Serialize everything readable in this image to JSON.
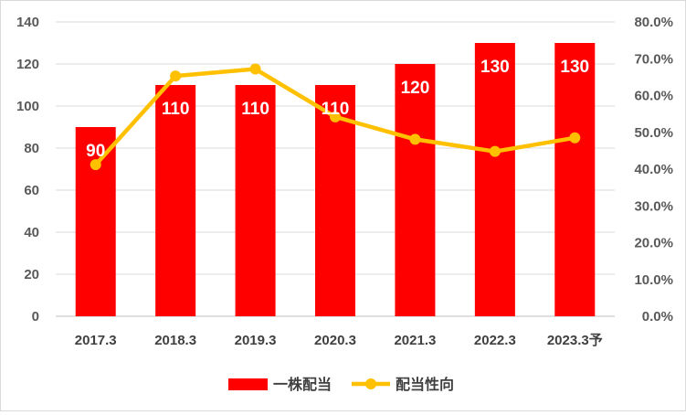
{
  "chart_data": {
    "type": "bar",
    "categories": [
      "2017.3",
      "2018.3",
      "2019.3",
      "2020.3",
      "2021.3",
      "2022.3",
      "2023.3予"
    ],
    "series": [
      {
        "name": "一株配当",
        "type": "bar",
        "axis": "left",
        "color": "#ff0000",
        "values": [
          90,
          110,
          110,
          110,
          120,
          130,
          130
        ],
        "data_labels": [
          "90",
          "110",
          "110",
          "110",
          "120",
          "130",
          "130"
        ]
      },
      {
        "name": "配当性向",
        "type": "line",
        "axis": "right",
        "color": "#ffc000",
        "values": [
          41.2,
          65.3,
          67.2,
          54.2,
          48.1,
          44.8,
          48.5
        ]
      }
    ],
    "y_left": {
      "min": 0,
      "max": 140,
      "ticks": [
        "0",
        "20",
        "40",
        "60",
        "80",
        "100",
        "120",
        "140"
      ]
    },
    "y_right": {
      "min": 0,
      "max": 80,
      "ticks": [
        "0.0%",
        "10.0%",
        "20.0%",
        "30.0%",
        "40.0%",
        "50.0%",
        "60.0%",
        "70.0%",
        "80.0%"
      ]
    },
    "grid": true,
    "legend_position": "bottom"
  }
}
